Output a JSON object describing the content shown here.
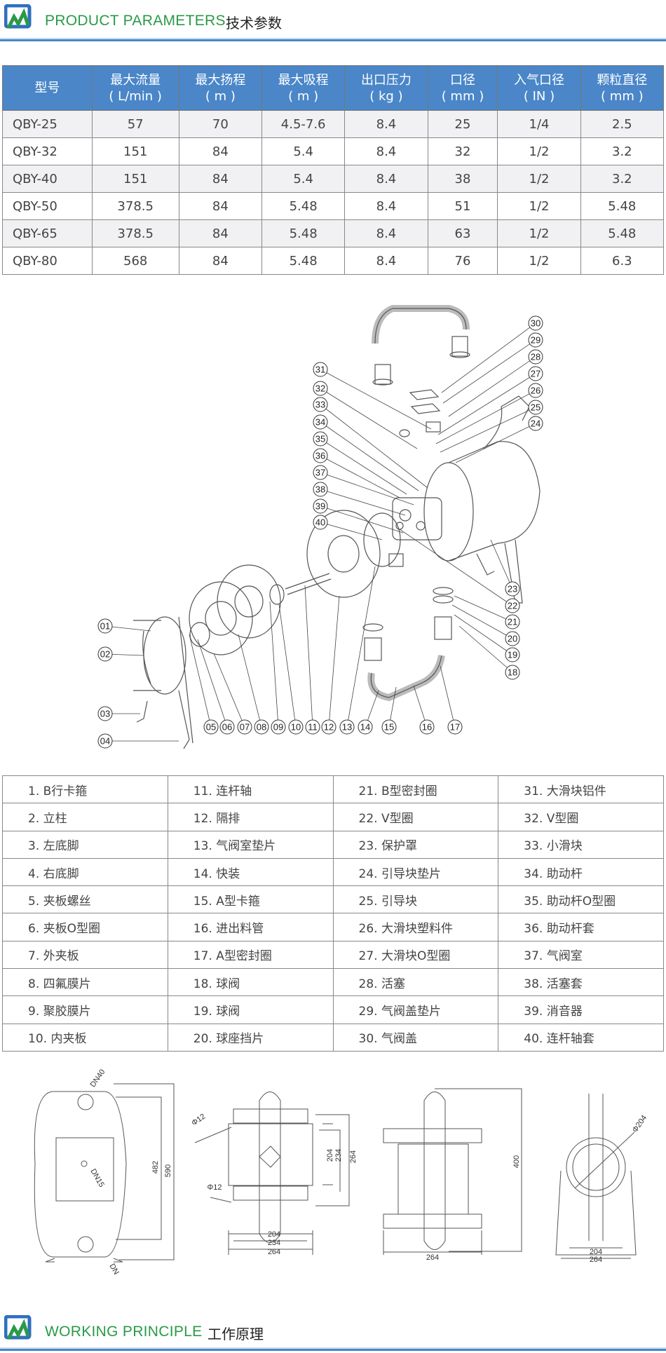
{
  "header_top": {
    "title_en": "PRODUCT PARAMETERS",
    "title_cn": "技术参数"
  },
  "spec_table": {
    "columns": [
      {
        "line1": "型号",
        "line2": ""
      },
      {
        "line1": "最大流量",
        "line2": "( L/min )"
      },
      {
        "line1": "最大扬程",
        "line2": "( m )"
      },
      {
        "line1": "最大吸程",
        "line2": "( m )"
      },
      {
        "line1": "出口压力",
        "line2": "( kg )"
      },
      {
        "line1": "口径",
        "line2": "( mm )"
      },
      {
        "line1": "入气口径",
        "line2": "( IN )"
      },
      {
        "line1": "颗粒直径",
        "line2": "( mm )"
      }
    ],
    "rows": [
      [
        "QBY-25",
        "57",
        "70",
        "4.5-7.6",
        "8.4",
        "25",
        "1/4",
        "2.5"
      ],
      [
        "QBY-32",
        "151",
        "84",
        "5.4",
        "8.4",
        "32",
        "1/2",
        "3.2"
      ],
      [
        "QBY-40",
        "151",
        "84",
        "5.4",
        "8.4",
        "38",
        "1/2",
        "3.2"
      ],
      [
        "QBY-50",
        "378.5",
        "84",
        "5.48",
        "8.4",
        "51",
        "1/2",
        "5.48"
      ],
      [
        "QBY-65",
        "378.5",
        "84",
        "5.48",
        "8.4",
        "63",
        "1/2",
        "5.48"
      ],
      [
        "QBY-80",
        "568",
        "84",
        "5.48",
        "8.4",
        "76",
        "1/2",
        "6.3"
      ]
    ]
  },
  "exploded_view": {
    "labels": [
      "01",
      "02",
      "03",
      "04",
      "05",
      "06",
      "07",
      "08",
      "09",
      "10",
      "11",
      "12",
      "13",
      "14",
      "15",
      "16",
      "17",
      "18",
      "19",
      "20",
      "21",
      "22",
      "23",
      "24",
      "25",
      "26",
      "27",
      "28",
      "29",
      "30",
      "31",
      "32",
      "33",
      "34",
      "35",
      "36",
      "37",
      "38",
      "39",
      "40"
    ]
  },
  "parts_list": [
    [
      "1. B行卡箍",
      "11. 连杆轴",
      "21. B型密封圈",
      "31. 大滑块铝件"
    ],
    [
      "2. 立柱",
      "12. 隔排",
      "22. V型圈",
      "32. V型圈"
    ],
    [
      "3. 左底脚",
      "13. 气阀室垫片",
      "23. 保护罩",
      "33. 小滑块"
    ],
    [
      "4. 右底脚",
      "14. 快装",
      "24. 引导块垫片",
      "34. 助动杆"
    ],
    [
      "5. 夹板螺丝",
      "15. A型卡箍",
      "25. 引导块",
      "35. 助动杆O型圈"
    ],
    [
      "6. 夹板O型圈",
      "16. 进出料管",
      "26. 大滑块塑料件",
      "36. 助动杆套"
    ],
    [
      "7. 外夹板",
      "17. A型密封圈",
      "27. 大滑块O型圈",
      "37. 气阀室"
    ],
    [
      "8. 四氟膜片",
      "18. 球阀",
      "28. 活塞",
      "38. 活塞套"
    ],
    [
      "9. 聚胶膜片",
      "19. 球阀",
      "29. 气阀盖垫片",
      "39. 消音器"
    ],
    [
      "10. 内夹板",
      "20. 球座挡片",
      "30. 气阀盖",
      "40. 连杆轴套"
    ]
  ],
  "dimension_drawings": {
    "front": {
      "dn_top": "DN40",
      "dn_mid": "DN15",
      "dn_bottom": "DN",
      "h1": "482",
      "h2": "590"
    },
    "side": {
      "hole_top": "Φ12",
      "hole_bottom": "Φ12",
      "v1": "204",
      "v2": "234",
      "v3": "264",
      "w1": "204",
      "w2": "234",
      "w3": "264"
    },
    "rear": {
      "height": "400",
      "width": "264"
    },
    "end": {
      "diameter": "Φ204",
      "w1": "204",
      "w2": "264"
    }
  },
  "header_bottom": {
    "title_en": "WORKING PRINCIPLE",
    "title_cn": "工作原理"
  },
  "colors": {
    "accent_blue": "#4a86c8",
    "title_green": "#2a9a48"
  }
}
